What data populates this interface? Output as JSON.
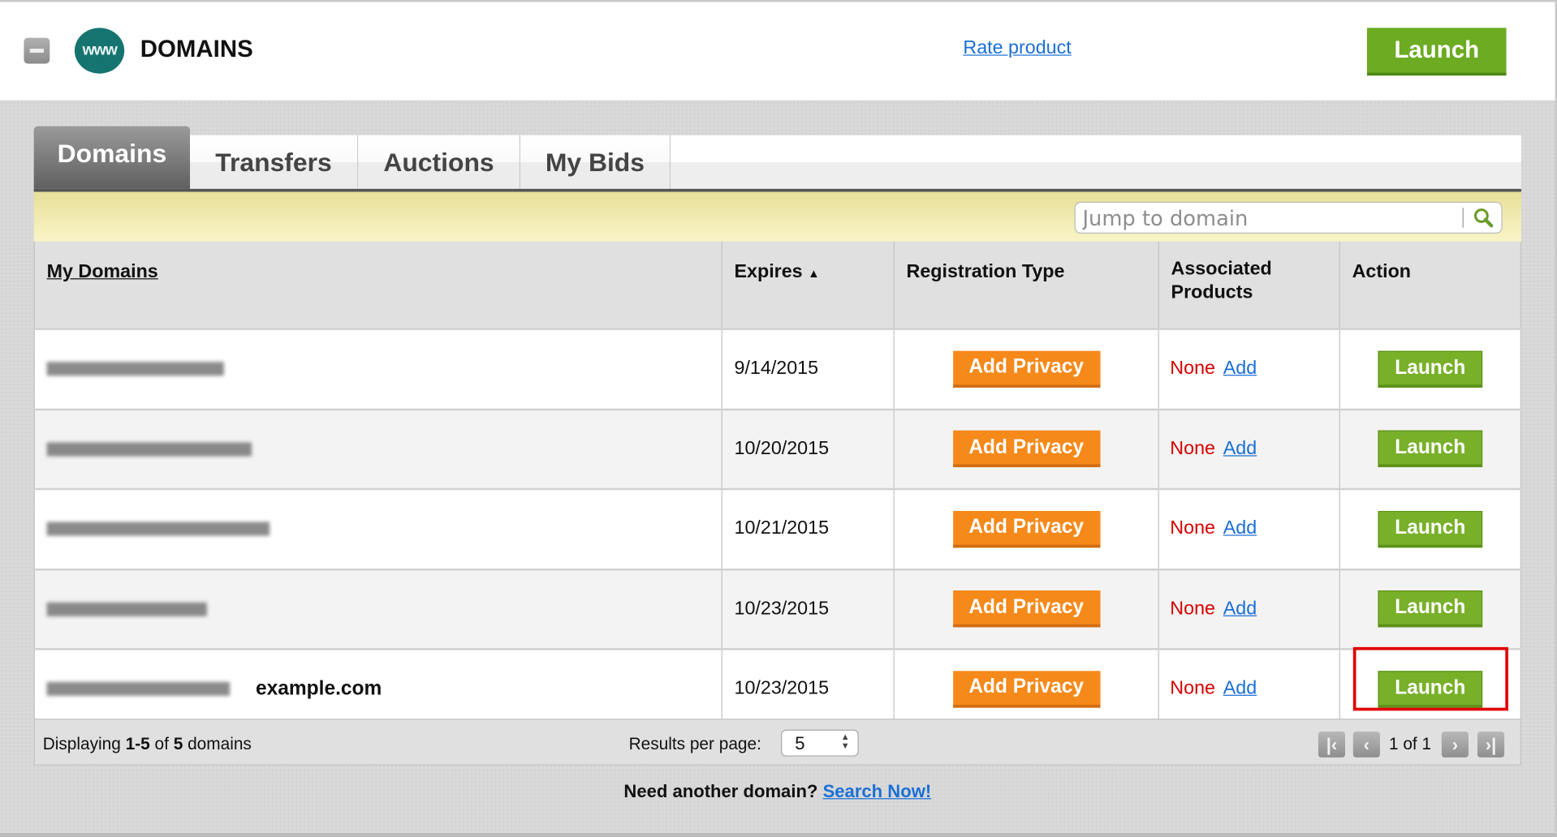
{
  "header": {
    "collapse_icon": "minus-icon",
    "logo_text": "www",
    "title": "DOMAINS",
    "rate_link": "Rate product",
    "launch_label": "Launch"
  },
  "tabs": [
    {
      "label": "Domains",
      "active": true
    },
    {
      "label": "Transfers",
      "active": false
    },
    {
      "label": "Auctions",
      "active": false
    },
    {
      "label": "My Bids",
      "active": false
    }
  ],
  "search": {
    "placeholder": "Jump to domain",
    "icon": "search-icon"
  },
  "table": {
    "columns": [
      "My Domains",
      "Expires",
      "Registration Type",
      "Associated Products",
      "Action"
    ],
    "sort_indicator": "▲",
    "rows": [
      {
        "expires": "9/14/2015",
        "registration": "Add Privacy",
        "products": "None",
        "add": "Add",
        "action": "Launch"
      },
      {
        "expires": "10/20/2015",
        "registration": "Add Privacy",
        "products": "None",
        "add": "Add",
        "action": "Launch"
      },
      {
        "expires": "10/21/2015",
        "registration": "Add Privacy",
        "products": "None",
        "add": "Add",
        "action": "Launch"
      },
      {
        "expires": "10/23/2015",
        "registration": "Add Privacy",
        "products": "None",
        "add": "Add",
        "action": "Launch"
      },
      {
        "expires": "10/23/2015",
        "registration": "Add Privacy",
        "products": "None",
        "add": "Add",
        "action": "Launch",
        "label": "example.com",
        "highlighted": true
      }
    ]
  },
  "footer": {
    "displaying_prefix": "Displaying ",
    "range": "1-5",
    "of": " of ",
    "total": "5",
    "suffix": " domains",
    "results_per_page_label": "Results per page:",
    "results_per_page": "5",
    "page_info": "1 of 1"
  },
  "bottom": {
    "text": "Need another domain?",
    "link": "Search Now!"
  },
  "colors": {
    "accent_green": "#79b02a",
    "accent_orange": "#f5891a",
    "link_blue": "#1a6fd6",
    "none_red": "#d60000",
    "highlight_red": "#e00000",
    "logo_teal": "#167470"
  }
}
